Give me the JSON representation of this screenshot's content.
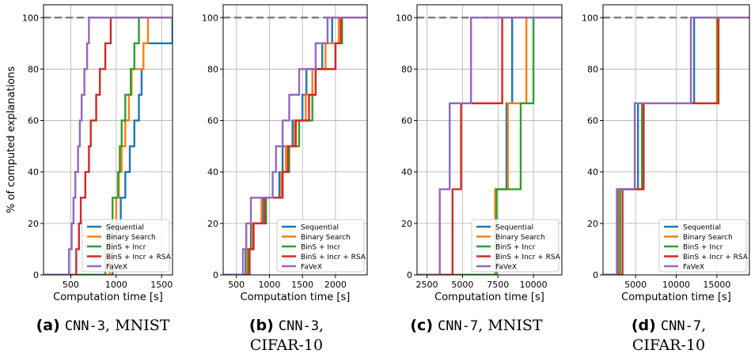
{
  "figure": {
    "ylabel": "% of computed explanations",
    "xlabel": "Computation time [s]",
    "series_colors": {
      "Sequential": "#1f77b4",
      "Binary Search": "#ff7f0e",
      "BinS + Incr": "#2ca02c",
      "BinS + Incr + RSA": "#d62728",
      "FaVeX": "#9467bd"
    },
    "reference_line": {
      "y": 100,
      "style": "dashed",
      "color": "#808080"
    }
  },
  "captions": [
    {
      "tag": "(a)",
      "model": "CNN-3",
      "rest": ", MNIST"
    },
    {
      "tag": "(b)",
      "model": "CNN-3",
      "rest": ",",
      "line2": "CIFAR-10"
    },
    {
      "tag": "(c)",
      "model": "CNN-7",
      "rest": ", MNIST"
    },
    {
      "tag": "(d)",
      "model": "CNN-7",
      "rest": ",",
      "line2": "CIFAR-10"
    }
  ],
  "chart_data": [
    {
      "type": "line",
      "step": true,
      "xlabel": "Computation time [s]",
      "ylabel": "% of computed explanations",
      "xlim": [
        200,
        1620
      ],
      "ylim": [
        0,
        105
      ],
      "xticks": [
        500,
        1000,
        1500
      ],
      "xtick_labels": [
        "500",
        "1000",
        "1500"
      ],
      "yticks": [
        0,
        20,
        40,
        60,
        80,
        100
      ],
      "grid": true,
      "legend": "lower-right",
      "series": [
        {
          "name": "Sequential",
          "color": "#1f77b4",
          "x": [
            960,
            1000,
            1050,
            1100,
            1150,
            1200,
            1250,
            1280,
            1300,
            1620
          ],
          "y": [
            10,
            20,
            30,
            40,
            50,
            60,
            70,
            80,
            90,
            100
          ]
        },
        {
          "name": "Binary Search",
          "color": "#ff7f0e",
          "x": [
            930,
            960,
            1000,
            1030,
            1060,
            1100,
            1140,
            1170,
            1300,
            1350,
            1620
          ],
          "y": [
            10,
            20,
            30,
            40,
            50,
            60,
            70,
            80,
            90,
            100,
            100
          ]
        },
        {
          "name": "BinS + Incr",
          "color": "#2ca02c",
          "x": [
            880,
            930,
            960,
            1020,
            1040,
            1060,
            1100,
            1160,
            1200,
            1250,
            1620
          ],
          "y": [
            10,
            20,
            30,
            40,
            50,
            60,
            70,
            80,
            90,
            100,
            100
          ]
        },
        {
          "name": "BinS + Incr + RSA",
          "color": "#d62728",
          "x": [
            560,
            590,
            610,
            660,
            700,
            720,
            780,
            820,
            880,
            940,
            1620
          ],
          "y": [
            10,
            20,
            30,
            40,
            50,
            60,
            70,
            80,
            90,
            100,
            100
          ]
        },
        {
          "name": "FaVeX",
          "color": "#9467bd",
          "x": [
            480,
            510,
            530,
            550,
            580,
            600,
            620,
            650,
            680,
            700,
            740,
            1620
          ],
          "y": [
            10,
            20,
            30,
            40,
            50,
            60,
            70,
            80,
            90,
            100,
            100,
            100
          ]
        }
      ]
    },
    {
      "type": "line",
      "step": true,
      "xlabel": "Computation time [s]",
      "ylabel": "",
      "xlim": [
        300,
        2480
      ],
      "ylim": [
        0,
        105
      ],
      "xticks": [
        500,
        1000,
        1500,
        2000
      ],
      "xtick_labels": [
        "500",
        "1000",
        "1500",
        "2000"
      ],
      "yticks": [
        0,
        20,
        40,
        60,
        80,
        100
      ],
      "grid": true,
      "legend": "lower-right",
      "series": [
        {
          "name": "Sequential",
          "color": "#1f77b4",
          "x": [
            640,
            720,
            900,
            1150,
            1200,
            1350,
            1500,
            1560,
            1800,
            1950,
            2050,
            2480
          ],
          "y": [
            10,
            20,
            30,
            40,
            50,
            60,
            70,
            80,
            90,
            100,
            100,
            100
          ]
        },
        {
          "name": "Binary Search",
          "color": "#ff7f0e",
          "x": [
            660,
            740,
            880,
            1180,
            1250,
            1380,
            1550,
            1650,
            1850,
            2050,
            2480
          ],
          "y": [
            10,
            20,
            30,
            40,
            50,
            60,
            70,
            80,
            90,
            100,
            100
          ]
        },
        {
          "name": "BinS + Incr",
          "color": "#2ca02c",
          "x": [
            680,
            760,
            950,
            1200,
            1300,
            1450,
            1650,
            1700,
            2000,
            2100,
            2480
          ],
          "y": [
            10,
            20,
            30,
            40,
            50,
            60,
            70,
            80,
            90,
            100,
            100
          ]
        },
        {
          "name": "BinS + Incr + RSA",
          "color": "#d62728",
          "x": [
            700,
            760,
            930,
            1200,
            1280,
            1400,
            1600,
            1700,
            2000,
            2080,
            2480
          ],
          "y": [
            10,
            20,
            30,
            40,
            50,
            60,
            70,
            80,
            90,
            100,
            100
          ]
        },
        {
          "name": "FaVeX",
          "color": "#9467bd",
          "x": [
            600,
            650,
            720,
            1050,
            1100,
            1200,
            1300,
            1450,
            1700,
            1880,
            2480
          ],
          "y": [
            10,
            20,
            30,
            40,
            50,
            60,
            70,
            80,
            90,
            100,
            100
          ]
        }
      ]
    },
    {
      "type": "line",
      "step": true,
      "xlabel": "Computation time [s]",
      "ylabel": "",
      "xlim": [
        1800,
        12000
      ],
      "ylim": [
        0,
        105
      ],
      "xticks": [
        2500,
        5000,
        7500,
        10000
      ],
      "xtick_labels": [
        "2500",
        "5000",
        "7500",
        "10000"
      ],
      "yticks": [
        0,
        20,
        40,
        60,
        80,
        100
      ],
      "grid": true,
      "legend": "lower-right",
      "series": [
        {
          "name": "Sequential",
          "color": "#1f77b4",
          "x": [
            7300,
            8100,
            8500,
            12000
          ],
          "y": [
            33.3,
            66.7,
            100,
            100
          ]
        },
        {
          "name": "Binary Search",
          "color": "#ff7f0e",
          "x": [
            7300,
            8200,
            9500,
            12000
          ],
          "y": [
            33.3,
            66.7,
            100,
            100
          ]
        },
        {
          "name": "BinS + Incr",
          "color": "#2ca02c",
          "x": [
            7400,
            9100,
            10000,
            12000
          ],
          "y": [
            33.3,
            66.7,
            100,
            100
          ]
        },
        {
          "name": "BinS + Incr + RSA",
          "color": "#d62728",
          "x": [
            4300,
            4900,
            7800,
            12000
          ],
          "y": [
            33.3,
            66.7,
            100,
            100
          ]
        },
        {
          "name": "FaVeX",
          "color": "#9467bd",
          "x": [
            3400,
            4100,
            5600,
            12000
          ],
          "y": [
            33.3,
            66.7,
            100,
            100
          ]
        }
      ]
    },
    {
      "type": "line",
      "step": true,
      "xlabel": "Computation time [s]",
      "ylabel": "",
      "xlim": [
        1000,
        19000
      ],
      "ylim": [
        0,
        105
      ],
      "xticks": [
        5000,
        10000,
        15000
      ],
      "xtick_labels": [
        "5000",
        "10000",
        "15000"
      ],
      "yticks": [
        0,
        20,
        40,
        60,
        80,
        100
      ],
      "grid": true,
      "legend": "lower-right",
      "series": [
        {
          "name": "Sequential",
          "color": "#1f77b4",
          "x": [
            2800,
            5300,
            12200,
            19000
          ],
          "y": [
            33.3,
            66.7,
            100,
            100
          ]
        },
        {
          "name": "Binary Search",
          "color": "#ff7f0e",
          "x": [
            3000,
            5800,
            15000,
            19000
          ],
          "y": [
            33.3,
            66.7,
            100,
            100
          ]
        },
        {
          "name": "BinS + Incr",
          "color": "#2ca02c",
          "x": [
            3100,
            5800,
            15100,
            19000
          ],
          "y": [
            33.3,
            66.7,
            100,
            100
          ]
        },
        {
          "name": "BinS + Incr + RSA",
          "color": "#d62728",
          "x": [
            3400,
            6000,
            15200,
            19000
          ],
          "y": [
            33.3,
            66.7,
            100,
            100
          ]
        },
        {
          "name": "FaVeX",
          "color": "#9467bd",
          "x": [
            2700,
            4900,
            11800,
            19000
          ],
          "y": [
            33.3,
            66.7,
            100,
            100
          ]
        }
      ]
    }
  ]
}
